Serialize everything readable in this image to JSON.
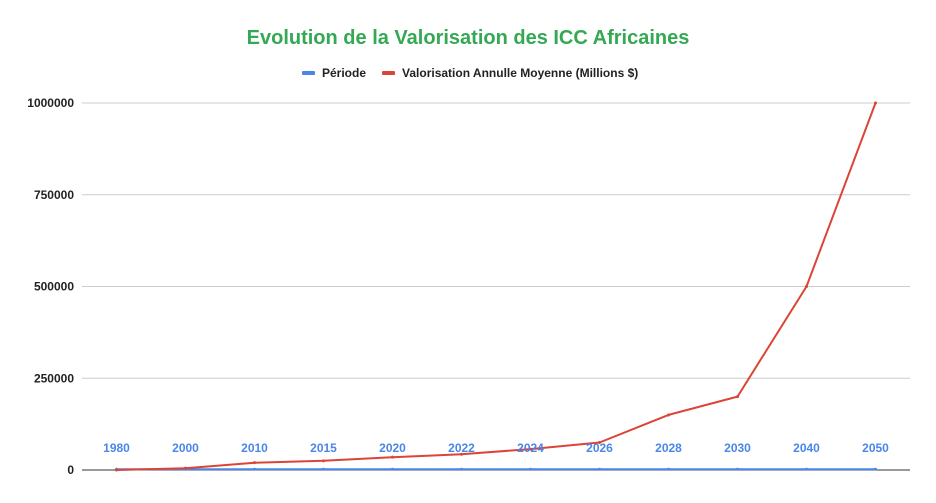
{
  "chart_data": {
    "type": "line",
    "title": "Evolution de la Valorisation des ICC Africaines",
    "xlabel": "",
    "ylabel": "",
    "categories": [
      "1980",
      "2000",
      "2010",
      "2015",
      "2020",
      "2022",
      "2024",
      "2026",
      "2028",
      "2030",
      "2040",
      "2050"
    ],
    "series": [
      {
        "name": "Période",
        "color": "#4a86e8",
        "values": [
          1980,
          2000,
          2010,
          2015,
          2020,
          2022,
          2024,
          2026,
          2028,
          2030,
          2040,
          2050
        ]
      },
      {
        "name": "Valorisation Annulle Moyenne (Millions $)",
        "color": "#db4437",
        "values": [
          100,
          5000,
          20000,
          25000,
          35000,
          43000,
          57000,
          75000,
          150000,
          200000,
          500000,
          1000000
        ]
      }
    ],
    "ylim": [
      0,
      1000000
    ],
    "yticks": [
      "0",
      "250000",
      "500000",
      "750000",
      "1000000"
    ],
    "grid": true,
    "legend_position": "top",
    "title_color": "#34a853",
    "xtick_color": "#4a86e8"
  }
}
